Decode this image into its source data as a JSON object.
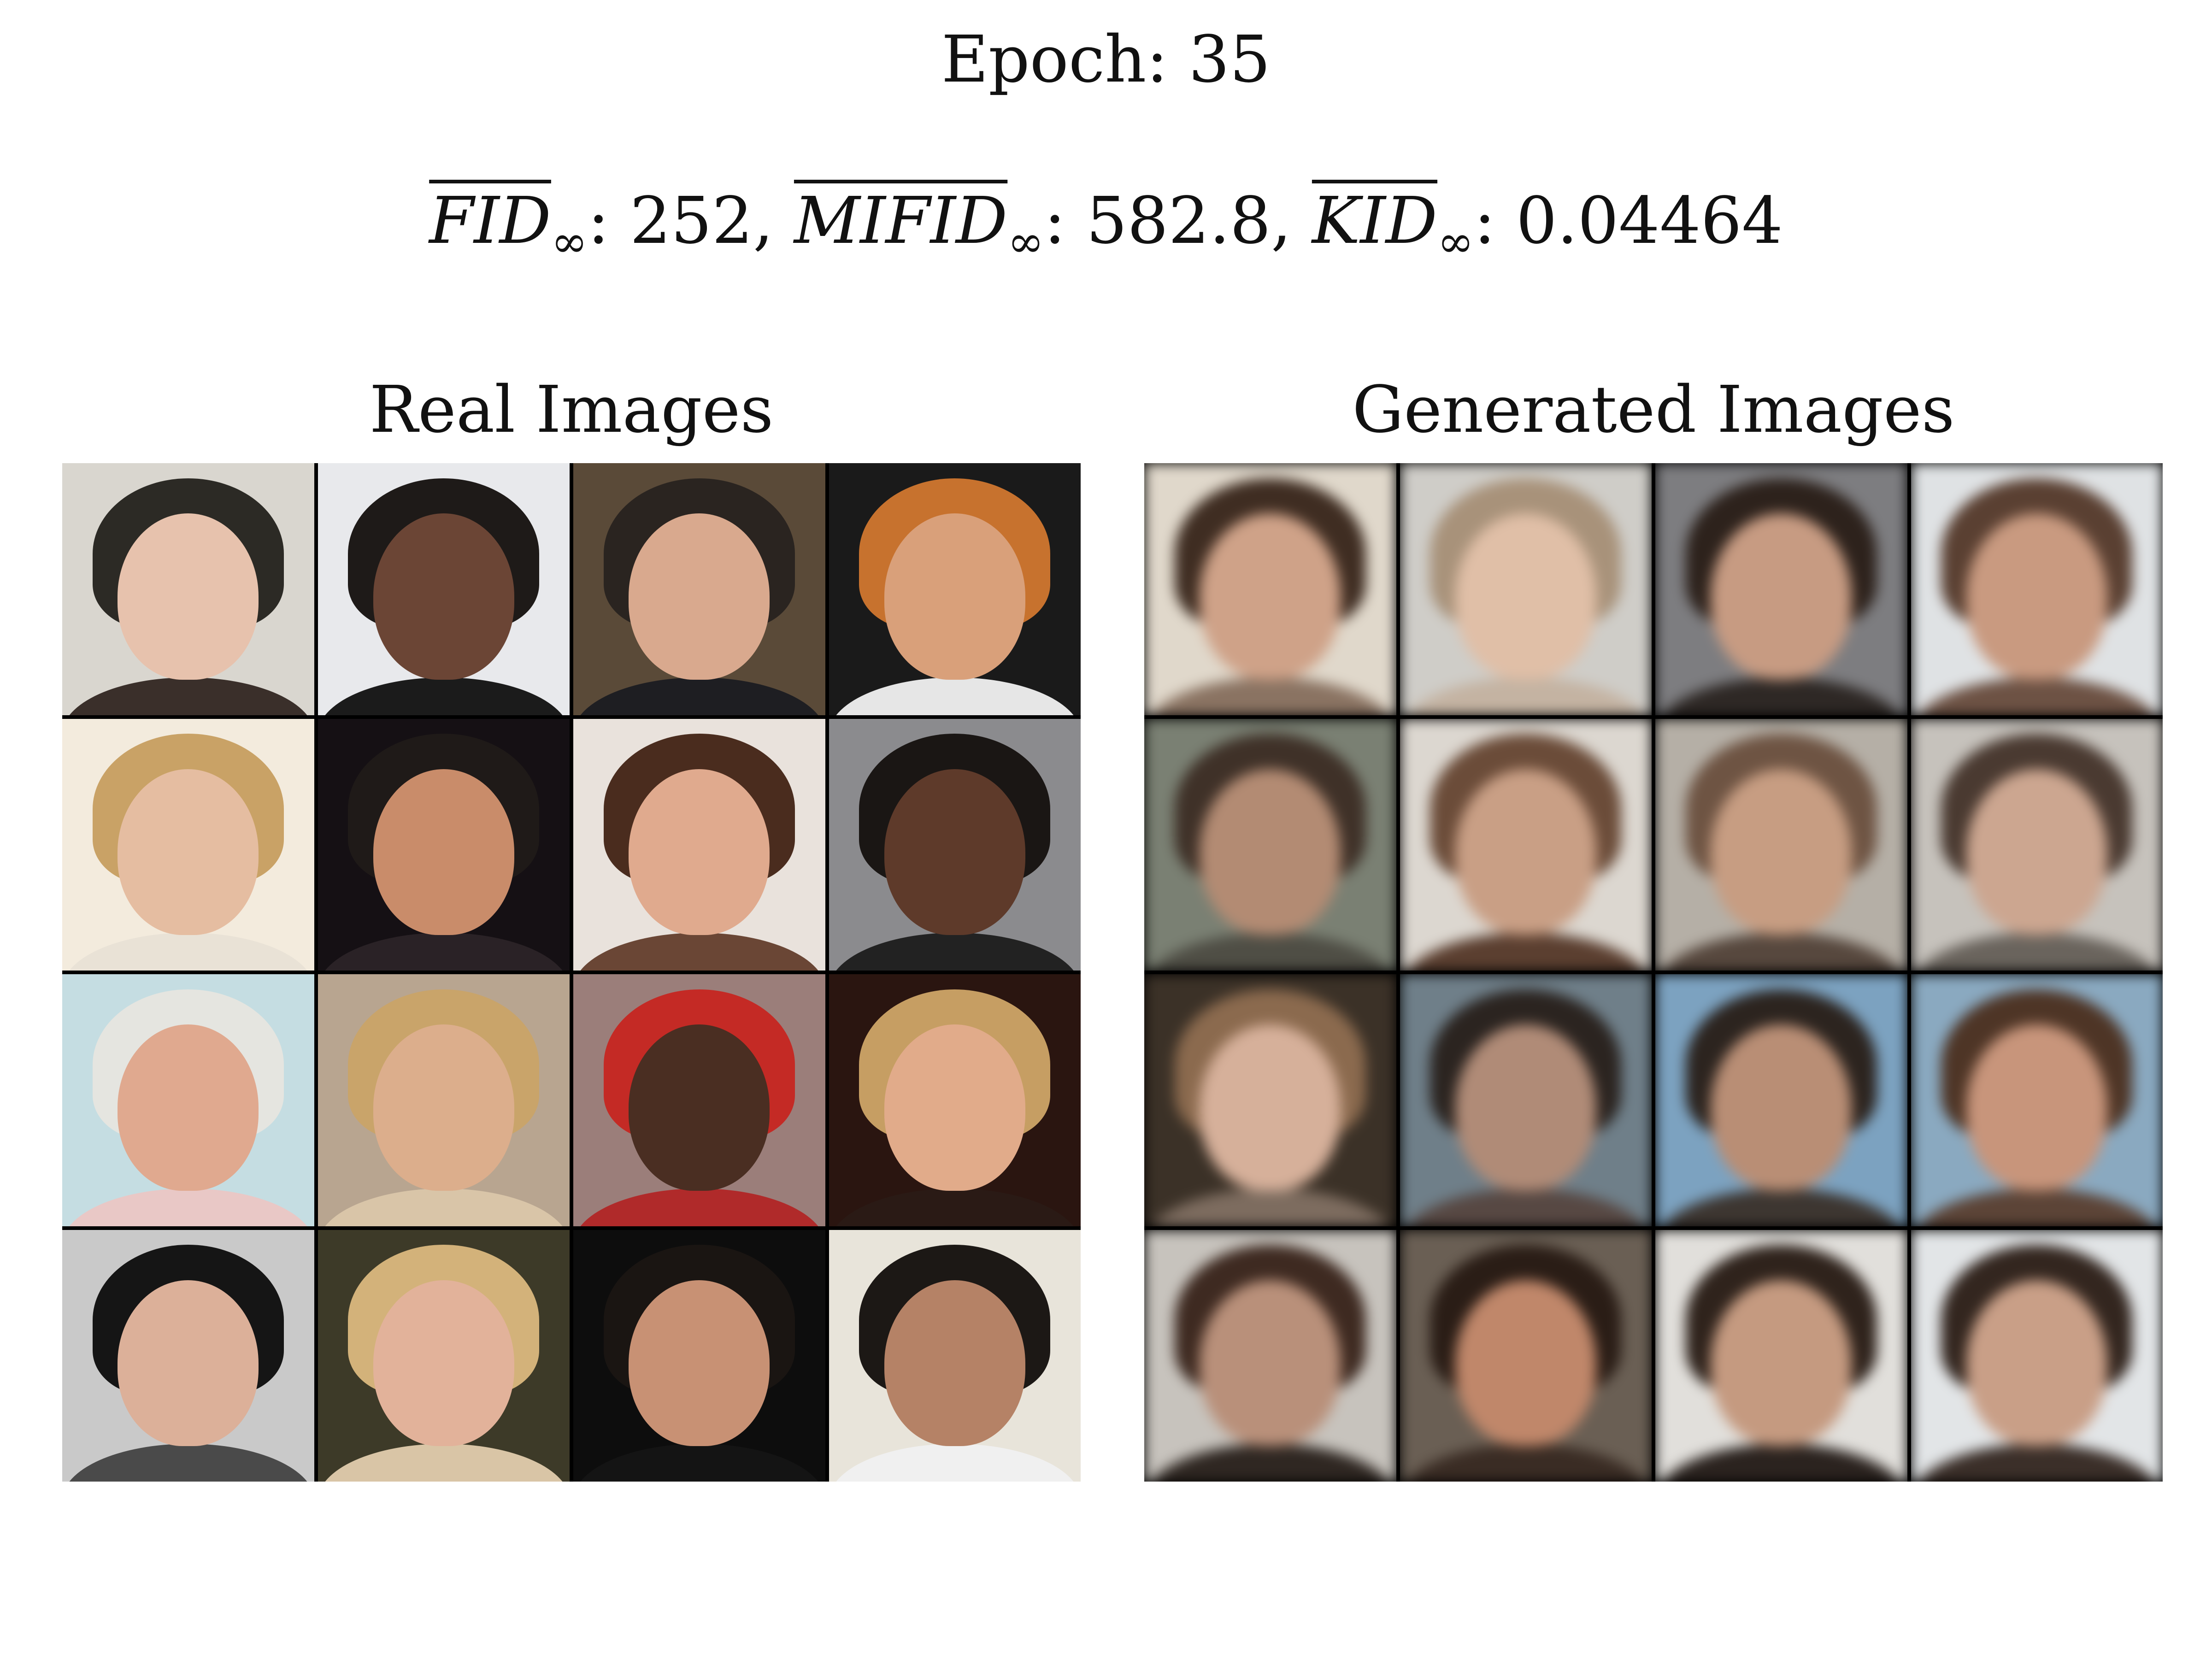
{
  "title": "Epoch: 35",
  "metrics": [
    {
      "name": "FID",
      "sub": "∞",
      "value": "252"
    },
    {
      "name": "MIFID",
      "sub": "∞",
      "value": "582.8"
    },
    {
      "name": "KID",
      "sub": "∞",
      "value": "0.04464"
    }
  ],
  "separator": ", ",
  "panels": {
    "real": {
      "title": "Real Images"
    },
    "generated": {
      "title": "Generated Images"
    }
  },
  "real_images": [
    {
      "bg": "#d9d6cf",
      "hair": "#2c2a25",
      "skin": "#e7c2ad",
      "cloth": "#3a2f2a"
    },
    {
      "bg": "#e8e9ec",
      "hair": "#1e1a18",
      "skin": "#6b4535",
      "cloth": "#1b1b1b"
    },
    {
      "bg": "#5a4a38",
      "hair": "#2a2420",
      "skin": "#d9a98e",
      "cloth": "#1e1e22"
    },
    {
      "bg": "#1a1a1a",
      "hair": "#c7722e",
      "skin": "#d9a07a",
      "cloth": "#e6e6e6"
    },
    {
      "bg": "#f3ebdd",
      "hair": "#c9a266",
      "skin": "#e5bda1",
      "cloth": "#e9e2d6"
    },
    {
      "bg": "#151014",
      "hair": "#1f1a18",
      "skin": "#c98c6a",
      "cloth": "#2a2226"
    },
    {
      "bg": "#e9e2dc",
      "hair": "#4a2c1e",
      "skin": "#e0aa8e",
      "cloth": "#6a4635"
    },
    {
      "bg": "#8b8b8e",
      "hair": "#1a1614",
      "skin": "#5e3a2a",
      "cloth": "#222"
    },
    {
      "bg": "#c5dde2",
      "hair": "#e5e5e0",
      "skin": "#e0a98f",
      "cloth": "#e9c8c6"
    },
    {
      "bg": "#b8a590",
      "hair": "#c9a46a",
      "skin": "#dcae8c",
      "cloth": "#d9c5a8"
    },
    {
      "bg": "#9b7e7a",
      "hair": "#c42a25",
      "skin": "#4a2e22",
      "cloth": "#b02a2a"
    },
    {
      "bg": "#2a1510",
      "hair": "#c69e63",
      "skin": "#e1ab8a",
      "cloth": "#2a1a15"
    },
    {
      "bg": "#c9c9c9",
      "hair": "#151515",
      "skin": "#dcb099",
      "cloth": "#4a4a4a"
    },
    {
      "bg": "#3d3a28",
      "hair": "#d3b27a",
      "skin": "#e2b29a",
      "cloth": "#d9c5a6"
    },
    {
      "bg": "#0d0d0d",
      "hair": "#1a1512",
      "skin": "#c89174",
      "cloth": "#141414"
    },
    {
      "bg": "#e8e4da",
      "hair": "#1c1815",
      "skin": "#b58266",
      "cloth": "#f0f0f0"
    }
  ],
  "generated_images": [
    {
      "bg": "#e0d8cb",
      "hair": "#3f2d22",
      "skin": "#cfa288",
      "cloth": "#8a7362"
    },
    {
      "bg": "#cfcdc8",
      "hair": "#a8927a",
      "skin": "#e0bfa7",
      "cloth": "#c4b3a2"
    },
    {
      "bg": "#7d7d80",
      "hair": "#2d221c",
      "skin": "#c79b82",
      "cloth": "#2e2825"
    },
    {
      "bg": "#dfe2e4",
      "hair": "#5a4032",
      "skin": "#c99a80",
      "cloth": "#6d5244"
    },
    {
      "bg": "#7a8073",
      "hair": "#3f3128",
      "skin": "#b38b73",
      "cloth": "#4f4e45"
    },
    {
      "bg": "#dcd7d0",
      "hair": "#6b4c39",
      "skin": "#c99f85",
      "cloth": "#5b3f30"
    },
    {
      "bg": "#b5afa6",
      "hair": "#6e5443",
      "skin": "#c79d82",
      "cloth": "#57483e"
    },
    {
      "bg": "#c6c2bc",
      "hair": "#4a3a31",
      "skin": "#cca690",
      "cloth": "#6a645d"
    },
    {
      "bg": "#3b3127",
      "hair": "#8b6a4e",
      "skin": "#d6b09a",
      "cloth": "#7d6c5f"
    },
    {
      "bg": "#6f7f89",
      "hair": "#2b2420",
      "skin": "#b08b77",
      "cloth": "#574843"
    },
    {
      "bg": "#7ca2c0",
      "hair": "#2c241f",
      "skin": "#b98e75",
      "cloth": "#3d3631"
    },
    {
      "bg": "#8aa9c0",
      "hair": "#4e3526",
      "skin": "#c8957b",
      "cloth": "#5c4437"
    },
    {
      "bg": "#c7c3bd",
      "hair": "#3e2a21",
      "skin": "#b9907a",
      "cloth": "#2f2722"
    },
    {
      "bg": "#6a5f54",
      "hair": "#2a1d16",
      "skin": "#c0876a",
      "cloth": "#3a2c24"
    },
    {
      "bg": "#e1dfdb",
      "hair": "#2f231c",
      "skin": "#c59a80",
      "cloth": "#2b231f"
    },
    {
      "bg": "#e2e5e7",
      "hair": "#33261f",
      "skin": "#c99f87",
      "cloth": "#3b2f29"
    }
  ]
}
